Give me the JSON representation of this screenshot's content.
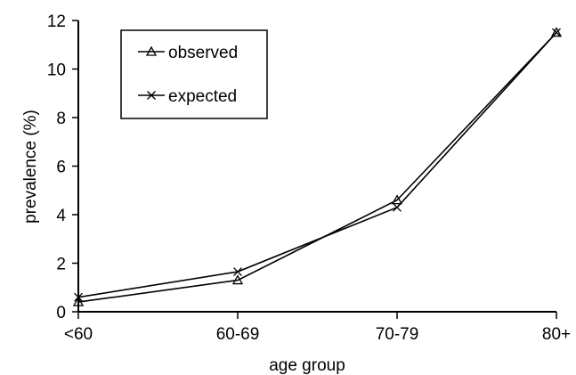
{
  "chart_data": {
    "type": "line",
    "categories": [
      "<60",
      "60-69",
      "70-79",
      "80+"
    ],
    "series": [
      {
        "name": "observed",
        "marker": "triangle",
        "values": [
          0.4,
          1.3,
          4.6,
          11.5
        ]
      },
      {
        "name": "expected",
        "marker": "x",
        "values": [
          0.6,
          1.65,
          4.3,
          11.5
        ]
      }
    ],
    "title": "",
    "xlabel": "age group",
    "ylabel": "prevalence (%)",
    "ylim": [
      0,
      12
    ],
    "yticks": [
      0,
      2,
      4,
      6,
      8,
      10,
      12
    ],
    "grid": false,
    "legend": {
      "position": "top-left"
    }
  }
}
